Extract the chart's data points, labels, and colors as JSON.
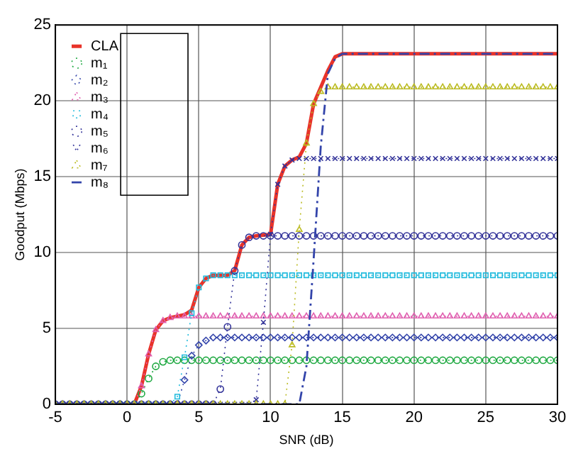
{
  "chart_data": {
    "type": "line",
    "xlabel": "SNR (dB)",
    "ylabel": "Goodput (Mbps)",
    "xlim": [
      -5,
      30
    ],
    "xticks": [
      -5,
      0,
      5,
      10,
      15,
      20,
      25,
      30
    ],
    "ylim": [
      0,
      25
    ],
    "yticks": [
      0,
      5,
      10,
      15,
      20,
      25
    ],
    "grid": true,
    "legend": "top left",
    "x": [
      -5,
      -4.5,
      -4,
      -3.5,
      -3,
      -2.5,
      -2,
      -1.5,
      -1,
      -0.5,
      0,
      0.5,
      1,
      1.5,
      2,
      2.5,
      3,
      3.5,
      4,
      4.5,
      5,
      5.5,
      6,
      6.5,
      7,
      7.5,
      8,
      8.5,
      9,
      9.5,
      10,
      10.5,
      11,
      11.5,
      12,
      12.5,
      13,
      13.5,
      14,
      14.5,
      15,
      15.5,
      16,
      16.5,
      17,
      17.5,
      18,
      18.5,
      19,
      19.5,
      20,
      20.5,
      21,
      21.5,
      22,
      22.5,
      23,
      23.5,
      24,
      24.5,
      25,
      25.5,
      26,
      26.5,
      27,
      27.5,
      28,
      28.5,
      29,
      29.5,
      30
    ],
    "series": [
      {
        "name": "CLA",
        "color": "#e8332a",
        "line_style": "solid",
        "marker": "none",
        "x": [
          -5,
          0.5,
          1,
          1.5,
          2,
          2.5,
          3,
          3.5,
          4,
          4.5,
          5,
          5.5,
          6,
          7,
          7.5,
          8,
          8.5,
          9,
          10,
          10.5,
          11,
          11.5,
          12,
          12.5,
          13,
          13.5,
          14,
          14.5,
          15,
          30
        ],
        "values": [
          0,
          0,
          1.2,
          3.3,
          4.9,
          5.5,
          5.7,
          5.8,
          5.9,
          6.2,
          7.7,
          8.3,
          8.5,
          8.5,
          8.8,
          10.5,
          11.0,
          11.1,
          11.2,
          14.5,
          15.7,
          16.1,
          16.3,
          17.2,
          19.8,
          20.9,
          22,
          22.9,
          23.1,
          23.1
        ]
      },
      {
        "name": "m₁",
        "color": "#22aa44",
        "line_style": "dotted",
        "marker": "circle",
        "values": [
          null,
          null,
          null,
          null,
          null,
          null,
          null,
          null,
          null,
          0,
          0,
          0,
          0.7,
          1.7,
          2.5,
          2.8,
          2.9,
          2.9,
          2.9,
          2.9,
          2.9,
          2.9,
          2.9,
          2.9,
          2.9,
          2.9,
          2.9,
          2.9,
          2.9,
          2.9,
          2.9,
          2.9,
          2.9,
          2.9,
          2.9,
          2.9,
          2.9,
          2.9,
          2.9,
          2.9,
          2.9,
          2.9,
          2.9,
          2.9,
          2.9,
          2.9,
          2.9,
          2.9,
          2.9,
          2.9,
          2.9,
          2.9,
          2.9,
          2.9,
          2.9,
          2.9,
          2.9,
          2.9,
          2.9,
          2.9,
          2.9,
          2.9,
          2.9,
          2.9,
          2.9,
          2.9,
          2.9,
          2.9,
          2.9,
          2.9,
          2.9
        ]
      },
      {
        "name": "m₂",
        "color": "#3344aa",
        "line_style": "dotted",
        "marker": "diamond",
        "values": [
          0,
          0,
          0,
          0,
          0,
          0,
          0,
          0,
          0,
          0,
          0,
          0,
          0,
          0,
          0,
          0,
          0,
          0,
          1.6,
          3.2,
          3.9,
          4.2,
          4.4,
          4.4,
          4.4,
          4.4,
          4.4,
          4.4,
          4.4,
          4.4,
          4.4,
          4.4,
          4.4,
          4.4,
          4.4,
          4.4,
          4.4,
          4.4,
          4.4,
          4.4,
          4.4,
          4.4,
          4.4,
          4.4,
          4.4,
          4.4,
          4.4,
          4.4,
          4.4,
          4.4,
          4.4,
          4.4,
          4.4,
          4.4,
          4.4,
          4.4,
          4.4,
          4.4,
          4.4,
          4.4,
          4.4,
          4.4,
          4.4,
          4.4,
          4.4,
          4.4,
          4.4,
          4.4,
          4.4,
          4.4,
          4.4
        ]
      },
      {
        "name": "m₃",
        "color": "#e060b0",
        "line_style": "dotted",
        "marker": "triangle",
        "values": [
          null,
          null,
          null,
          null,
          null,
          null,
          null,
          null,
          null,
          0,
          0,
          0,
          1.2,
          3.3,
          4.9,
          5.5,
          5.7,
          5.8,
          5.8,
          5.8,
          5.8,
          5.8,
          5.8,
          5.8,
          5.8,
          5.8,
          5.8,
          5.8,
          5.8,
          5.8,
          5.8,
          5.8,
          5.8,
          5.8,
          5.8,
          5.8,
          5.8,
          5.8,
          5.8,
          5.8,
          5.8,
          5.8,
          5.8,
          5.8,
          5.8,
          5.8,
          5.8,
          5.8,
          5.8,
          5.8,
          5.8,
          5.8,
          5.8,
          5.8,
          5.8,
          5.8,
          5.8,
          5.8,
          5.8,
          5.8,
          5.8,
          5.8,
          5.8,
          5.8,
          5.8,
          5.8,
          5.8,
          5.8,
          5.8,
          5.8,
          5.8
        ]
      },
      {
        "name": "m₄",
        "color": "#22bbdd",
        "line_style": "dotted",
        "marker": "square",
        "values": [
          0,
          0,
          0,
          0,
          0,
          0,
          0,
          0,
          0,
          0,
          0,
          0,
          0,
          0,
          0,
          0,
          0,
          0.5,
          3.1,
          6.0,
          7.7,
          8.3,
          8.5,
          8.5,
          8.5,
          8.5,
          8.5,
          8.5,
          8.5,
          8.5,
          8.5,
          8.5,
          8.5,
          8.5,
          8.5,
          8.5,
          8.5,
          8.5,
          8.5,
          8.5,
          8.5,
          8.5,
          8.5,
          8.5,
          8.5,
          8.5,
          8.5,
          8.5,
          8.5,
          8.5,
          8.5,
          8.5,
          8.5,
          8.5,
          8.5,
          8.5,
          8.5,
          8.5,
          8.5,
          8.5,
          8.5,
          8.5,
          8.5,
          8.5,
          8.5,
          8.5,
          8.5,
          8.5,
          8.5,
          8.5,
          8.5
        ]
      },
      {
        "name": "m₅",
        "color": "#333399",
        "line_style": "dotted",
        "marker": "circle",
        "values": [
          0,
          0,
          0,
          0,
          0,
          0,
          0,
          0,
          0,
          0,
          0,
          0,
          0,
          0,
          0,
          0,
          0,
          0,
          0,
          0,
          0,
          0,
          0,
          1.0,
          5.1,
          8.8,
          10.5,
          11.0,
          11.1,
          11.1,
          11.1,
          11.1,
          11.1,
          11.1,
          11.1,
          11.1,
          11.1,
          11.1,
          11.1,
          11.1,
          11.1,
          11.1,
          11.1,
          11.1,
          11.1,
          11.1,
          11.1,
          11.1,
          11.1,
          11.1,
          11.1,
          11.1,
          11.1,
          11.1,
          11.1,
          11.1,
          11.1,
          11.1,
          11.1,
          11.1,
          11.1,
          11.1,
          11.1,
          11.1,
          11.1,
          11.1,
          11.1,
          11.1,
          11.1,
          11.1,
          11.1
        ]
      },
      {
        "name": "m₆",
        "color": "#333399",
        "line_style": "dotted",
        "marker": "cross",
        "values": [
          0,
          0,
          0,
          0,
          0,
          0,
          0,
          0,
          0,
          0,
          0,
          0,
          0,
          0,
          0,
          0,
          0,
          0,
          0,
          0,
          0,
          0,
          0,
          0,
          0,
          0,
          0,
          0,
          0.3,
          5.4,
          11.2,
          14.5,
          15.7,
          16.1,
          16.2,
          16.2,
          16.2,
          16.2,
          16.2,
          16.2,
          16.2,
          16.2,
          16.2,
          16.2,
          16.2,
          16.2,
          16.2,
          16.2,
          16.2,
          16.2,
          16.2,
          16.2,
          16.2,
          16.2,
          16.2,
          16.2,
          16.2,
          16.2,
          16.2,
          16.2,
          16.2,
          16.2,
          16.2,
          16.2,
          16.2,
          16.2,
          16.2,
          16.2,
          16.2,
          16.2,
          16.2
        ]
      },
      {
        "name": "m₇",
        "color": "#bbbb22",
        "line_style": "dotted",
        "marker": "triangle",
        "values": [
          0,
          0,
          0,
          0,
          0,
          0,
          0,
          0,
          0,
          0,
          0,
          0,
          0,
          0,
          0,
          0,
          0,
          0,
          0,
          0,
          0,
          0,
          0,
          0,
          0,
          0,
          0,
          0,
          0,
          0,
          0,
          0,
          0,
          3.9,
          11.5,
          17.2,
          19.8,
          20.6,
          20.9,
          20.9,
          20.9,
          20.9,
          20.9,
          20.9,
          20.9,
          20.9,
          20.9,
          20.9,
          20.9,
          20.9,
          20.9,
          20.9,
          20.9,
          20.9,
          20.9,
          20.9,
          20.9,
          20.9,
          20.9,
          20.9,
          20.9,
          20.9,
          20.9,
          20.9,
          20.9,
          20.9,
          20.9,
          20.9,
          20.9,
          20.9,
          20.9
        ]
      },
      {
        "name": "m₈",
        "color": "#3344aa",
        "line_style": "dashed",
        "marker": "none",
        "x": [
          -5,
          12,
          12.5,
          13,
          13.5,
          14,
          14.5,
          15,
          30
        ],
        "values": [
          0,
          0,
          2.5,
          9.5,
          17,
          21.8,
          22.8,
          23.1,
          23.1
        ]
      }
    ]
  }
}
